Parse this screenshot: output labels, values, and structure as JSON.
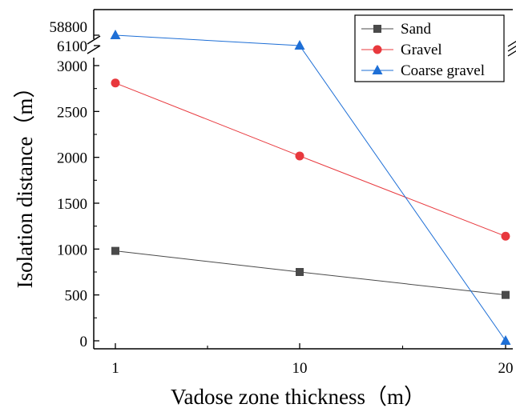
{
  "chart_data": {
    "type": "line",
    "xlabel": "Vadose zone thickness（m）",
    "ylabel": "Isolation distance（m）",
    "categories": [
      "1",
      "10",
      "20"
    ],
    "x_tick_labels": [
      "1",
      "10",
      "20"
    ],
    "y_tick_labels": [
      "0",
      "500",
      "1000",
      "1500",
      "2000",
      "2500",
      "3000"
    ],
    "y_break": {
      "lower_max": 3000,
      "upper_tick_labels": [
        "6100",
        "58800"
      ]
    },
    "ylim": [
      0,
      3000
    ],
    "grid": false,
    "legend_position": "top-right",
    "series": [
      {
        "name": "Sand",
        "marker": "square",
        "color": "#4a4a4a",
        "values": [
          980,
          750,
          500
        ]
      },
      {
        "name": "Gravel",
        "marker": "circle",
        "color": "#e8383d",
        "values": [
          2810,
          2015,
          1140
        ]
      },
      {
        "name": "Coarse gravel",
        "marker": "triangle",
        "color": "#1e6fd6",
        "values": [
          58800,
          6100,
          0
        ]
      }
    ]
  }
}
